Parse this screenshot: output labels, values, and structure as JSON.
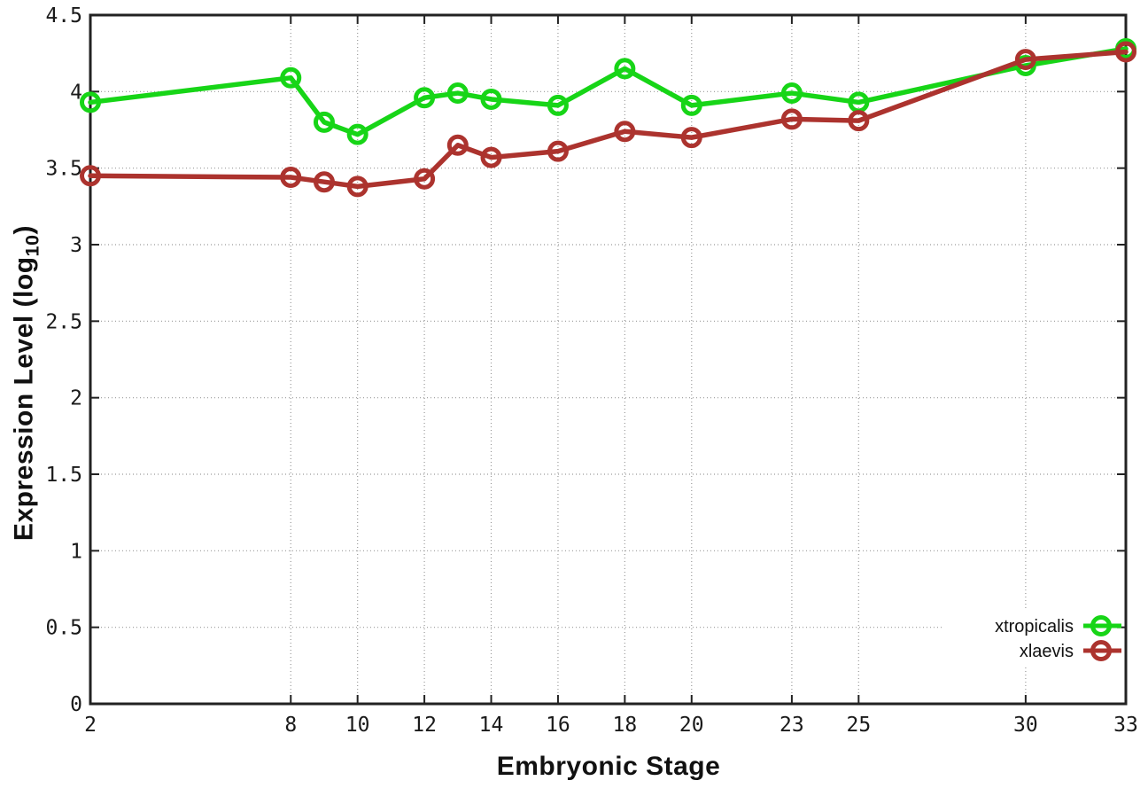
{
  "figure": {
    "background": "#ffffff",
    "labels": {
      "ylabel_prefix": "Expression Level (log",
      "ylabel_sub": "10",
      "ylabel_suffix": ")",
      "xlabel": "Embryonic Stage"
    }
  },
  "chart_data": {
    "type": "line",
    "title": "",
    "xlabel": "Embryonic Stage",
    "ylabel": "Expression Level (log10)",
    "x": [
      2,
      8,
      9,
      10,
      12,
      13,
      14,
      16,
      18,
      20,
      23,
      25,
      30,
      33
    ],
    "series": [
      {
        "name": "xtropicalis",
        "color": "#17d517",
        "values": [
          3.93,
          4.09,
          3.8,
          3.72,
          3.96,
          3.99,
          3.95,
          3.91,
          4.15,
          3.91,
          3.99,
          3.93,
          4.17,
          4.28
        ]
      },
      {
        "name": "xlaevis",
        "color": "#ac332e",
        "values": [
          3.45,
          3.44,
          3.41,
          3.38,
          3.43,
          3.65,
          3.57,
          3.61,
          3.74,
          3.7,
          3.82,
          3.81,
          4.21,
          4.26
        ]
      }
    ],
    "x_ticks": [
      2,
      8,
      10,
      12,
      14,
      16,
      18,
      20,
      23,
      25,
      30,
      33
    ],
    "x_tick_labels": [
      "2",
      "8",
      "10",
      "12",
      "14",
      "16",
      "18",
      "20",
      "23",
      "25",
      "30",
      "33"
    ],
    "y_ticks": [
      0,
      0.5,
      1,
      1.5,
      2,
      2.5,
      3,
      3.5,
      4,
      4.5
    ],
    "y_tick_labels": [
      "0",
      "0.5",
      "1",
      "1.5",
      "2",
      "2.5",
      "3",
      "3.5",
      "4",
      "4.5"
    ],
    "xlim": [
      2,
      33
    ],
    "ylim": [
      0,
      4.5
    ],
    "grid": true,
    "grid_color": "#9a9a9a",
    "border_color": "#222222",
    "legend_position": "bottom-right",
    "marker": "open-circle"
  }
}
